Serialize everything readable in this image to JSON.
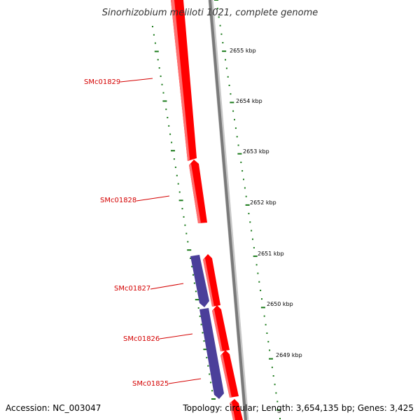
{
  "title": "Sinorhizobium meliloti 1021, complete genome",
  "footer": {
    "accession": "Accession: NC_003047",
    "summary": "Topology: circular; Length: 3,654,135 bp; Genes: 3,425"
  },
  "scale_ticks": [
    "2655 kbp",
    "2654 kbp",
    "2653 kbp",
    "2652 kbp",
    "2651 kbp",
    "2650 kbp",
    "2649 kbp"
  ],
  "gene_labels": [
    "SMc01829",
    "SMc01828",
    "SMc01827",
    "SMc01826",
    "SMc01825"
  ],
  "colors": {
    "forward_gene": "#ff0000",
    "reverse_gene": "#4b3f9a",
    "backbone": "#808080",
    "tick_marks": "#1a7a1a",
    "gene_label": "#d40000"
  }
}
